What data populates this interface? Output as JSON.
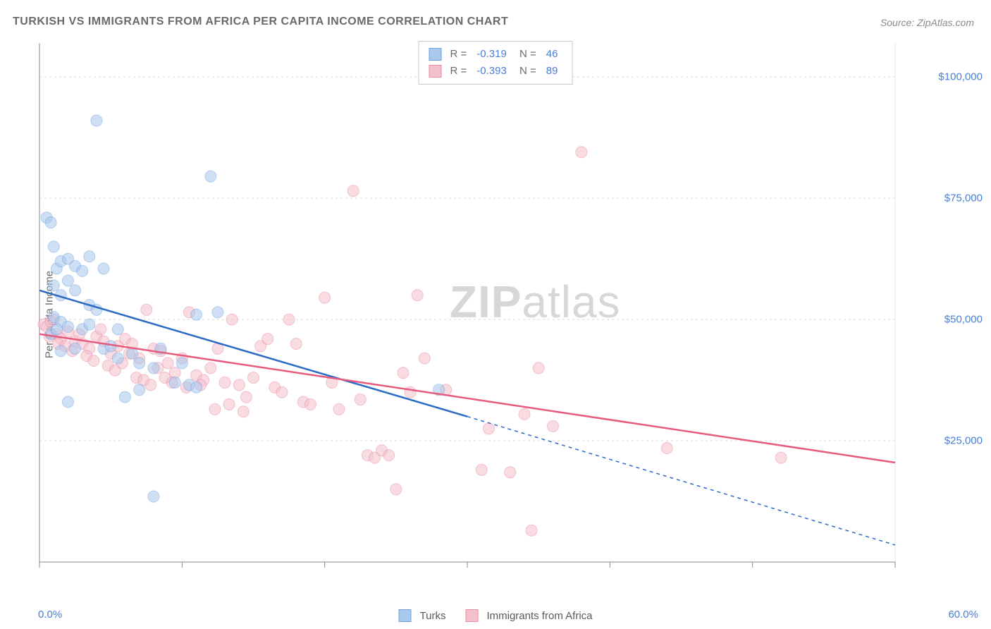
{
  "title": "TURKISH VS IMMIGRANTS FROM AFRICA PER CAPITA INCOME CORRELATION CHART",
  "source": "Source: ZipAtlas.com",
  "watermark_bold": "ZIP",
  "watermark_light": "atlas",
  "ylabel": "Per Capita Income",
  "chart": {
    "type": "scatter",
    "xlim": [
      0,
      60
    ],
    "ylim": [
      0,
      107000
    ],
    "xtick_left": "0.0%",
    "xtick_right": "60.0%",
    "xtick_positions_pct": [
      0,
      10,
      20,
      30,
      40,
      50,
      60
    ],
    "ygrid": [
      {
        "value": 25000,
        "label": "$25,000"
      },
      {
        "value": 50000,
        "label": "$50,000"
      },
      {
        "value": 75000,
        "label": "$75,000"
      },
      {
        "value": 100000,
        "label": "$100,000"
      }
    ],
    "background_color": "#ffffff",
    "grid_color": "#d9d9d9",
    "grid_dash": "3,4",
    "axis_color": "#8a8a8a",
    "marker_radius": 8,
    "marker_opacity": 0.55,
    "regression_width": 2.5,
    "series": [
      {
        "name": "Turks",
        "color_fill": "#a9c8ec",
        "color_stroke": "#6fa3df",
        "line_color": "#2b6bc4",
        "stats": {
          "R": "-0.319",
          "N": "46"
        },
        "regression_solid": {
          "x1": 0,
          "y1": 56000,
          "x2": 30,
          "y2": 30000
        },
        "regression_dash": {
          "x1": 30,
          "y1": 30000,
          "x2": 60,
          "y2": 3500
        },
        "points": [
          [
            0.5,
            71000
          ],
          [
            0.8,
            70000
          ],
          [
            1.0,
            65000
          ],
          [
            1.2,
            60500
          ],
          [
            1.5,
            62000
          ],
          [
            2.0,
            62500
          ],
          [
            2.5,
            61000
          ],
          [
            3.0,
            60000
          ],
          [
            3.5,
            63000
          ],
          [
            4.0,
            91000
          ],
          [
            4.5,
            60500
          ],
          [
            1.0,
            57000
          ],
          [
            1.5,
            55000
          ],
          [
            2.0,
            58000
          ],
          [
            2.5,
            56000
          ],
          [
            3.5,
            53000
          ],
          [
            1.0,
            50500
          ],
          [
            1.5,
            49500
          ],
          [
            2.0,
            48500
          ],
          [
            3.0,
            48000
          ],
          [
            2.5,
            44000
          ],
          [
            0.8,
            47000
          ],
          [
            1.2,
            48000
          ],
          [
            1.5,
            43500
          ],
          [
            4.5,
            44000
          ],
          [
            5.0,
            44500
          ],
          [
            5.5,
            42000
          ],
          [
            6.5,
            43000
          ],
          [
            7.0,
            41000
          ],
          [
            8.0,
            40000
          ],
          [
            8.5,
            44000
          ],
          [
            10.0,
            41000
          ],
          [
            11.0,
            51000
          ],
          [
            12.0,
            79500
          ],
          [
            12.5,
            51500
          ],
          [
            9.5,
            37000
          ],
          [
            10.5,
            36500
          ],
          [
            11.0,
            36000
          ],
          [
            7.0,
            35500
          ],
          [
            2.0,
            33000
          ],
          [
            8.0,
            13500
          ],
          [
            3.5,
            49000
          ],
          [
            5.5,
            48000
          ],
          [
            28.0,
            35500
          ],
          [
            6.0,
            34000
          ],
          [
            4.0,
            52000
          ]
        ]
      },
      {
        "name": "Immigrants from Africa",
        "color_fill": "#f4c0cc",
        "color_stroke": "#e98ba3",
        "line_color": "#e85a7d",
        "stats": {
          "R": "-0.393",
          "N": "89"
        },
        "regression_solid": {
          "x1": 0,
          "y1": 47000,
          "x2": 60,
          "y2": 20500
        },
        "regression_dash": null,
        "points": [
          [
            0.3,
            49000
          ],
          [
            0.5,
            48500
          ],
          [
            0.8,
            49500
          ],
          [
            1.0,
            50000
          ],
          [
            1.2,
            47000
          ],
          [
            1.5,
            46000
          ],
          [
            2.0,
            47500
          ],
          [
            2.5,
            45500
          ],
          [
            3.0,
            45000
          ],
          [
            3.5,
            44000
          ],
          [
            4.0,
            46500
          ],
          [
            4.5,
            45500
          ],
          [
            5.0,
            43000
          ],
          [
            5.5,
            44500
          ],
          [
            6.0,
            46000
          ],
          [
            6.5,
            45000
          ],
          [
            7.0,
            42000
          ],
          [
            7.5,
            52000
          ],
          [
            8.0,
            44000
          ],
          [
            8.5,
            43500
          ],
          [
            9.0,
            41000
          ],
          [
            9.5,
            39000
          ],
          [
            10.0,
            42000
          ],
          [
            10.5,
            51500
          ],
          [
            11.0,
            38500
          ],
          [
            11.5,
            37500
          ],
          [
            12.0,
            40000
          ],
          [
            12.5,
            44000
          ],
          [
            13.0,
            37000
          ],
          [
            13.5,
            50000
          ],
          [
            14.0,
            36500
          ],
          [
            14.5,
            34000
          ],
          [
            15.0,
            38000
          ],
          [
            15.5,
            44500
          ],
          [
            16.0,
            46000
          ],
          [
            16.5,
            36000
          ],
          [
            17.0,
            35000
          ],
          [
            17.5,
            50000
          ],
          [
            18.0,
            45000
          ],
          [
            18.5,
            33000
          ],
          [
            19.0,
            32500
          ],
          [
            20.0,
            54500
          ],
          [
            20.5,
            37000
          ],
          [
            21.0,
            31500
          ],
          [
            22.0,
            76500
          ],
          [
            22.5,
            33500
          ],
          [
            23.0,
            22000
          ],
          [
            23.5,
            21500
          ],
          [
            24.0,
            23000
          ],
          [
            24.5,
            22000
          ],
          [
            25.0,
            15000
          ],
          [
            25.5,
            39000
          ],
          [
            26.0,
            35000
          ],
          [
            26.5,
            55000
          ],
          [
            27.0,
            42000
          ],
          [
            28.5,
            35500
          ],
          [
            31.0,
            19000
          ],
          [
            31.5,
            27500
          ],
          [
            33.0,
            18500
          ],
          [
            34.0,
            30500
          ],
          [
            34.5,
            6500
          ],
          [
            35.0,
            40000
          ],
          [
            36.0,
            28000
          ],
          [
            38.0,
            84500
          ],
          [
            44.0,
            23500
          ],
          [
            52.0,
            21500
          ],
          [
            0.7,
            46500
          ],
          [
            1.3,
            45000
          ],
          [
            1.8,
            44500
          ],
          [
            2.3,
            43500
          ],
          [
            2.8,
            47000
          ],
          [
            3.3,
            42500
          ],
          [
            3.8,
            41500
          ],
          [
            4.3,
            48000
          ],
          [
            4.8,
            40500
          ],
          [
            5.3,
            39500
          ],
          [
            5.8,
            41000
          ],
          [
            6.3,
            43000
          ],
          [
            6.8,
            38000
          ],
          [
            7.3,
            37500
          ],
          [
            7.8,
            36500
          ],
          [
            8.3,
            40000
          ],
          [
            8.8,
            38000
          ],
          [
            9.3,
            37000
          ],
          [
            10.3,
            36000
          ],
          [
            11.3,
            36500
          ],
          [
            12.3,
            31500
          ],
          [
            13.3,
            32500
          ],
          [
            14.3,
            31000
          ]
        ]
      }
    ]
  },
  "legend_bottom": [
    {
      "label": "Turks",
      "fill": "#a9c8ec",
      "stroke": "#6fa3df"
    },
    {
      "label": "Immigrants from Africa",
      "fill": "#f4c0cc",
      "stroke": "#e98ba3"
    }
  ]
}
